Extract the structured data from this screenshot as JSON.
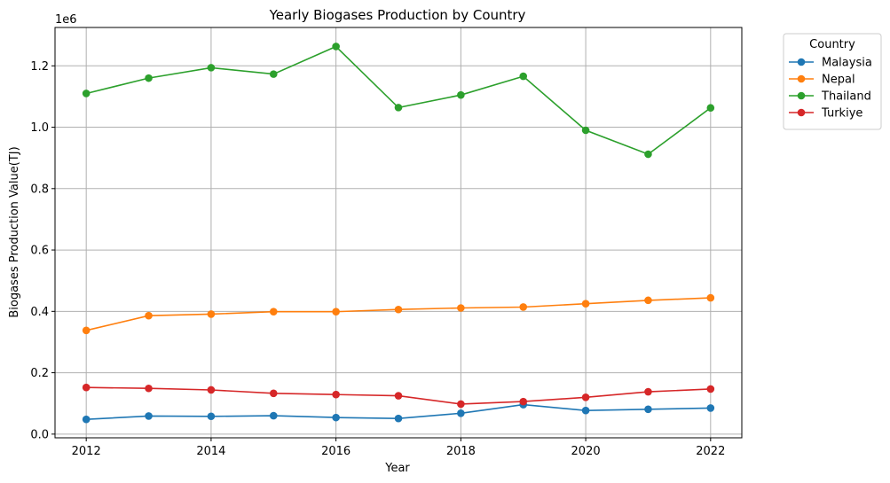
{
  "chart_data": {
    "type": "line",
    "title": "Yearly Biogases Production by Country",
    "xlabel": "Year",
    "ylabel": "Biogases Production Value(TJ)",
    "y_offset_label": "1e6",
    "x": [
      2012,
      2013,
      2014,
      2015,
      2016,
      2017,
      2018,
      2019,
      2020,
      2021,
      2022
    ],
    "xticks": [
      2012,
      2014,
      2016,
      2018,
      2020,
      2022
    ],
    "xtick_labels": [
      "2012",
      "2014",
      "2016",
      "2018",
      "2020",
      "2022"
    ],
    "xlim": [
      2011.5,
      2022.5
    ],
    "yticks": [
      0,
      0.2,
      0.4,
      0.6,
      0.8,
      1.0,
      1.2
    ],
    "ytick_labels": [
      "0.0",
      "0.2",
      "0.4",
      "0.6",
      "0.8",
      "1.0",
      "1.2"
    ],
    "ylim": [
      -0.012,
      1.325
    ],
    "grid": true,
    "legend": {
      "title": "Country",
      "placement": "outside-top-right"
    },
    "series": [
      {
        "name": "Malaysia",
        "color": "#1f77b4",
        "values": [
          0.048,
          0.059,
          0.058,
          0.06,
          0.054,
          0.051,
          0.068,
          0.096,
          0.077,
          0.081,
          0.085
        ]
      },
      {
        "name": "Nepal",
        "color": "#ff7f0e",
        "values": [
          0.338,
          0.386,
          0.391,
          0.399,
          0.399,
          0.406,
          0.411,
          0.414,
          0.425,
          0.436,
          0.444
        ]
      },
      {
        "name": "Thailand",
        "color": "#2ca02c",
        "values": [
          1.11,
          1.16,
          1.194,
          1.173,
          1.263,
          1.064,
          1.105,
          1.166,
          0.99,
          0.912,
          1.063
        ]
      },
      {
        "name": "Turkiye",
        "color": "#d62728",
        "values": [
          0.152,
          0.149,
          0.144,
          0.133,
          0.129,
          0.125,
          0.098,
          0.106,
          0.12,
          0.138,
          0.147
        ]
      }
    ]
  }
}
